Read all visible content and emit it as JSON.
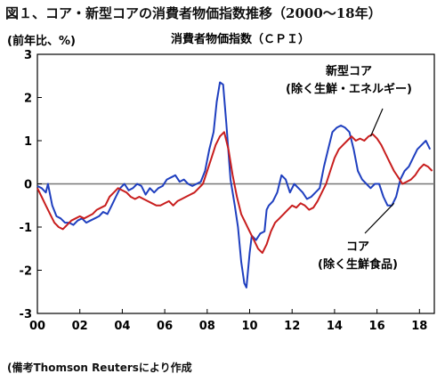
{
  "figure_title": "図１、コア・新型コアの消費者物価指数推移（2000〜18年）",
  "source_note": "(備考Thomson Reutersにより作成",
  "chart_data": {
    "type": "line",
    "title": "消費者物価指数（ＣＰＩ）",
    "ylabel": "(前年比、%)",
    "xlabel": "",
    "ylim": [
      -3,
      3
    ],
    "xlim": [
      2000,
      2018.7
    ],
    "yticks": [
      3,
      2,
      1,
      0,
      -1,
      -2,
      -3
    ],
    "xticks": [
      {
        "value": 2000,
        "label": "00"
      },
      {
        "value": 2002,
        "label": "02"
      },
      {
        "value": 2004,
        "label": "04"
      },
      {
        "value": 2006,
        "label": "06"
      },
      {
        "value": 2008,
        "label": "08"
      },
      {
        "value": 2010,
        "label": "10"
      },
      {
        "value": 2012,
        "label": "12"
      },
      {
        "value": 2014,
        "label": "14"
      },
      {
        "value": 2016,
        "label": "16"
      },
      {
        "value": 2018,
        "label": "18"
      }
    ],
    "grid": false,
    "zero_line": true,
    "series": [
      {
        "key": "core",
        "color": "#1f3fbf",
        "label_lines": [
          "コア",
          "(除く生鮮食品)"
        ],
        "points": [
          [
            2000.0,
            -0.05
          ],
          [
            2000.2,
            -0.1
          ],
          [
            2000.4,
            -0.2
          ],
          [
            2000.5,
            0.0
          ],
          [
            2000.7,
            -0.5
          ],
          [
            2000.9,
            -0.75
          ],
          [
            2001.1,
            -0.8
          ],
          [
            2001.3,
            -0.9
          ],
          [
            2001.5,
            -0.9
          ],
          [
            2001.7,
            -0.95
          ],
          [
            2001.9,
            -0.85
          ],
          [
            2002.1,
            -0.8
          ],
          [
            2002.3,
            -0.9
          ],
          [
            2002.5,
            -0.85
          ],
          [
            2002.7,
            -0.8
          ],
          [
            2002.9,
            -0.75
          ],
          [
            2003.1,
            -0.65
          ],
          [
            2003.3,
            -0.7
          ],
          [
            2003.5,
            -0.5
          ],
          [
            2003.7,
            -0.3
          ],
          [
            2003.9,
            -0.1
          ],
          [
            2004.1,
            0.0
          ],
          [
            2004.3,
            -0.15
          ],
          [
            2004.5,
            -0.1
          ],
          [
            2004.7,
            0.0
          ],
          [
            2004.9,
            -0.05
          ],
          [
            2005.1,
            -0.25
          ],
          [
            2005.3,
            -0.1
          ],
          [
            2005.5,
            -0.2
          ],
          [
            2005.7,
            -0.1
          ],
          [
            2005.9,
            -0.05
          ],
          [
            2006.1,
            0.1
          ],
          [
            2006.3,
            0.15
          ],
          [
            2006.5,
            0.2
          ],
          [
            2006.7,
            0.05
          ],
          [
            2006.9,
            0.1
          ],
          [
            2007.1,
            0.0
          ],
          [
            2007.3,
            -0.05
          ],
          [
            2007.5,
            0.0
          ],
          [
            2007.7,
            0.05
          ],
          [
            2007.9,
            0.3
          ],
          [
            2008.1,
            0.8
          ],
          [
            2008.3,
            1.2
          ],
          [
            2008.45,
            1.9
          ],
          [
            2008.6,
            2.35
          ],
          [
            2008.75,
            2.3
          ],
          [
            2008.9,
            1.4
          ],
          [
            2009.1,
            0.1
          ],
          [
            2009.3,
            -0.5
          ],
          [
            2009.45,
            -1.0
          ],
          [
            2009.6,
            -1.8
          ],
          [
            2009.75,
            -2.3
          ],
          [
            2009.85,
            -2.4
          ],
          [
            2010.0,
            -1.6
          ],
          [
            2010.1,
            -1.2
          ],
          [
            2010.3,
            -1.3
          ],
          [
            2010.5,
            -1.15
          ],
          [
            2010.7,
            -1.1
          ],
          [
            2010.8,
            -0.6
          ],
          [
            2010.9,
            -0.5
          ],
          [
            2011.1,
            -0.4
          ],
          [
            2011.3,
            -0.2
          ],
          [
            2011.5,
            0.2
          ],
          [
            2011.7,
            0.1
          ],
          [
            2011.9,
            -0.2
          ],
          [
            2012.1,
            0.0
          ],
          [
            2012.3,
            -0.1
          ],
          [
            2012.5,
            -0.2
          ],
          [
            2012.7,
            -0.35
          ],
          [
            2012.9,
            -0.3
          ],
          [
            2013.1,
            -0.2
          ],
          [
            2013.3,
            -0.1
          ],
          [
            2013.5,
            0.4
          ],
          [
            2013.7,
            0.8
          ],
          [
            2013.9,
            1.2
          ],
          [
            2014.1,
            1.3
          ],
          [
            2014.3,
            1.35
          ],
          [
            2014.5,
            1.3
          ],
          [
            2014.7,
            1.2
          ],
          [
            2014.9,
            0.8
          ],
          [
            2015.1,
            0.3
          ],
          [
            2015.3,
            0.1
          ],
          [
            2015.5,
            0.0
          ],
          [
            2015.7,
            -0.1
          ],
          [
            2015.9,
            0.0
          ],
          [
            2016.1,
            0.0
          ],
          [
            2016.3,
            -0.3
          ],
          [
            2016.5,
            -0.5
          ],
          [
            2016.7,
            -0.5
          ],
          [
            2016.9,
            -0.3
          ],
          [
            2017.1,
            0.1
          ],
          [
            2017.3,
            0.3
          ],
          [
            2017.5,
            0.4
          ],
          [
            2017.7,
            0.6
          ],
          [
            2017.9,
            0.8
          ],
          [
            2018.1,
            0.9
          ],
          [
            2018.3,
            1.0
          ],
          [
            2018.5,
            0.8
          ]
        ]
      },
      {
        "key": "new_core",
        "color": "#c81e1e",
        "label_lines": [
          "新型コア",
          "(除く生鮮・エネルギー)"
        ],
        "points": [
          [
            2000.0,
            -0.1
          ],
          [
            2000.2,
            -0.3
          ],
          [
            2000.4,
            -0.5
          ],
          [
            2000.6,
            -0.7
          ],
          [
            2000.8,
            -0.9
          ],
          [
            2001.0,
            -1.0
          ],
          [
            2001.2,
            -1.05
          ],
          [
            2001.4,
            -0.95
          ],
          [
            2001.6,
            -0.85
          ],
          [
            2001.8,
            -0.8
          ],
          [
            2002.0,
            -0.75
          ],
          [
            2002.2,
            -0.8
          ],
          [
            2002.4,
            -0.75
          ],
          [
            2002.6,
            -0.7
          ],
          [
            2002.8,
            -0.6
          ],
          [
            2003.0,
            -0.55
          ],
          [
            2003.2,
            -0.5
          ],
          [
            2003.4,
            -0.3
          ],
          [
            2003.6,
            -0.2
          ],
          [
            2003.8,
            -0.1
          ],
          [
            2004.0,
            -0.15
          ],
          [
            2004.2,
            -0.2
          ],
          [
            2004.4,
            -0.3
          ],
          [
            2004.6,
            -0.35
          ],
          [
            2004.8,
            -0.3
          ],
          [
            2005.0,
            -0.35
          ],
          [
            2005.2,
            -0.4
          ],
          [
            2005.4,
            -0.45
          ],
          [
            2005.6,
            -0.5
          ],
          [
            2005.8,
            -0.5
          ],
          [
            2006.0,
            -0.45
          ],
          [
            2006.2,
            -0.4
          ],
          [
            2006.4,
            -0.5
          ],
          [
            2006.6,
            -0.4
          ],
          [
            2006.8,
            -0.35
          ],
          [
            2007.0,
            -0.3
          ],
          [
            2007.2,
            -0.25
          ],
          [
            2007.4,
            -0.2
          ],
          [
            2007.6,
            -0.1
          ],
          [
            2007.8,
            0.0
          ],
          [
            2008.0,
            0.3
          ],
          [
            2008.2,
            0.6
          ],
          [
            2008.4,
            0.9
          ],
          [
            2008.6,
            1.1
          ],
          [
            2008.8,
            1.2
          ],
          [
            2009.0,
            0.8
          ],
          [
            2009.2,
            0.2
          ],
          [
            2009.4,
            -0.3
          ],
          [
            2009.6,
            -0.7
          ],
          [
            2009.8,
            -0.9
          ],
          [
            2010.0,
            -1.1
          ],
          [
            2010.2,
            -1.3
          ],
          [
            2010.4,
            -1.5
          ],
          [
            2010.6,
            -1.6
          ],
          [
            2010.8,
            -1.4
          ],
          [
            2011.0,
            -1.1
          ],
          [
            2011.2,
            -0.9
          ],
          [
            2011.4,
            -0.8
          ],
          [
            2011.6,
            -0.7
          ],
          [
            2011.8,
            -0.6
          ],
          [
            2012.0,
            -0.5
          ],
          [
            2012.2,
            -0.55
          ],
          [
            2012.4,
            -0.45
          ],
          [
            2012.6,
            -0.5
          ],
          [
            2012.8,
            -0.6
          ],
          [
            2013.0,
            -0.55
          ],
          [
            2013.2,
            -0.4
          ],
          [
            2013.4,
            -0.2
          ],
          [
            2013.6,
            0.0
          ],
          [
            2013.8,
            0.3
          ],
          [
            2014.0,
            0.6
          ],
          [
            2014.2,
            0.8
          ],
          [
            2014.4,
            0.9
          ],
          [
            2014.6,
            1.0
          ],
          [
            2014.8,
            1.1
          ],
          [
            2015.0,
            1.0
          ],
          [
            2015.2,
            1.05
          ],
          [
            2015.4,
            1.0
          ],
          [
            2015.6,
            1.1
          ],
          [
            2015.8,
            1.15
          ],
          [
            2016.0,
            1.05
          ],
          [
            2016.2,
            0.9
          ],
          [
            2016.4,
            0.7
          ],
          [
            2016.6,
            0.5
          ],
          [
            2016.8,
            0.3
          ],
          [
            2017.0,
            0.15
          ],
          [
            2017.2,
            0.0
          ],
          [
            2017.4,
            0.05
          ],
          [
            2017.6,
            0.1
          ],
          [
            2017.8,
            0.2
          ],
          [
            2018.0,
            0.35
          ],
          [
            2018.2,
            0.45
          ],
          [
            2018.4,
            0.4
          ],
          [
            2018.6,
            0.3
          ]
        ]
      }
    ]
  }
}
